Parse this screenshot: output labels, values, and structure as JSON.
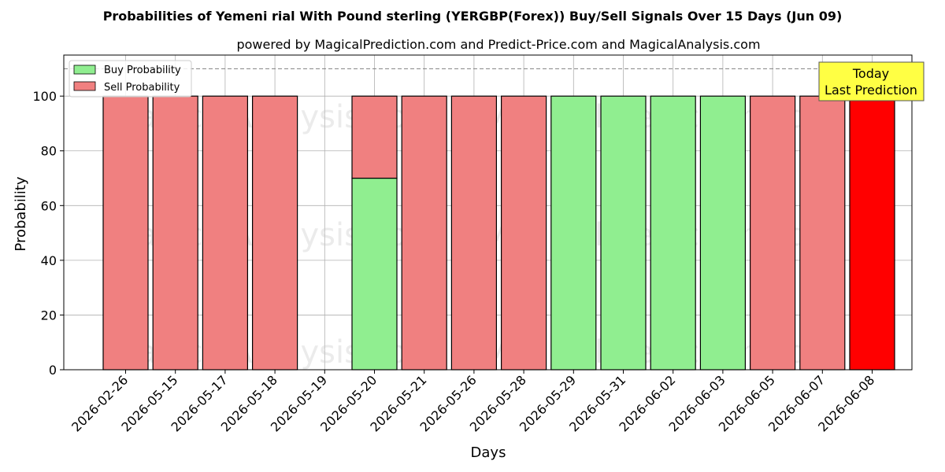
{
  "chart_data": {
    "type": "bar",
    "stacked": true,
    "title": "Probabilities of Yemeni rial With Pound sterling (YERGBP(Forex)) Buy/Sell Signals Over 15 Days (Jun 09)",
    "subtitle": "powered by MagicalPrediction.com and Predict-Price.com and MagicalAnalysis.com",
    "xlabel": "Days",
    "ylabel": "Probability",
    "ylim": [
      0,
      115
    ],
    "yticks": [
      0,
      20,
      40,
      60,
      80,
      100
    ],
    "grid": true,
    "legend_position": "top-left",
    "reference_line": 110,
    "categories": [
      "2026-02-26",
      "2026-05-15",
      "2026-05-17",
      "2026-05-18",
      "2026-05-19",
      "2026-05-20",
      "2026-05-21",
      "2026-05-26",
      "2026-05-28",
      "2026-05-29",
      "2026-05-31",
      "2026-06-02",
      "2026-06-03",
      "2026-06-05",
      "2026-06-07",
      "2026-06-08"
    ],
    "series": [
      {
        "name": "Buy Probability",
        "color": "#90ee90",
        "values": [
          0,
          0,
          0,
          0,
          0,
          70,
          0,
          0,
          0,
          100,
          100,
          100,
          100,
          0,
          0,
          0
        ]
      },
      {
        "name": "Sell Probability",
        "color": "#f08080",
        "values": [
          100,
          100,
          100,
          100,
          0,
          30,
          100,
          100,
          100,
          0,
          0,
          0,
          0,
          100,
          100,
          100
        ]
      }
    ],
    "highlight": {
      "index": 15,
      "color": "#ff0000"
    },
    "annotation": {
      "line1": "Today",
      "line2": "Last Prediction",
      "color": "#ffff44"
    },
    "watermarks": [
      "MagicalAnalysis.com",
      "MagicalPrediction.com"
    ]
  }
}
